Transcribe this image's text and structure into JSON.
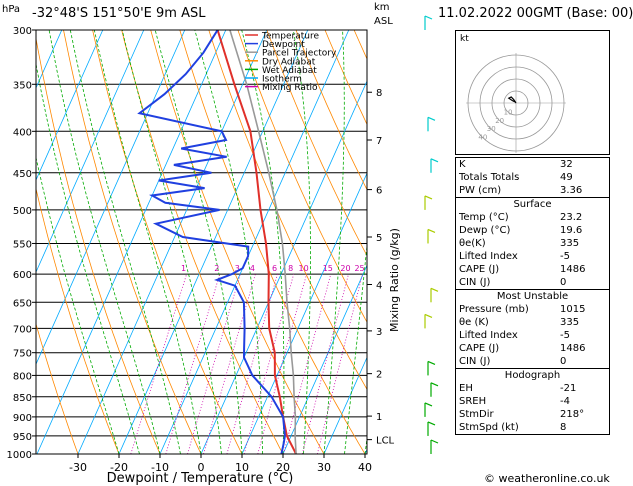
{
  "header": {
    "hpa_label": "hPa",
    "location": "-32°48'S 151°50'E 9m ASL",
    "km_label": "km",
    "asl_label": "ASL",
    "date": "11.02.2022 00GMT (Base: 00)"
  },
  "footer": {
    "credit": "© weatheronline.co.uk"
  },
  "chart_data": {
    "type": "line",
    "subtype": "skew-T log-P diagram",
    "xlabel": "Dewpoint / Temperature (°C)",
    "ylabel_right": "Mixing Ratio (g/kg)",
    "x_ticks": [
      -30,
      -20,
      -10,
      0,
      10,
      20,
      30,
      40
    ],
    "pressure_levels": [
      300,
      350,
      400,
      450,
      500,
      550,
      600,
      650,
      700,
      750,
      800,
      850,
      900,
      950,
      1000
    ],
    "altitude_km_ticks": [
      {
        "label": "8",
        "p": 358
      },
      {
        "label": "7",
        "p": 410
      },
      {
        "label": "6",
        "p": 472
      },
      {
        "label": "5",
        "p": 540
      },
      {
        "label": "4",
        "p": 618
      },
      {
        "label": "3",
        "p": 705
      },
      {
        "label": "2",
        "p": 796
      },
      {
        "label": "1",
        "p": 898
      },
      {
        "label": "LCL",
        "p": 960
      }
    ],
    "mixing_ratio_labels": [
      "1",
      "2",
      "3",
      "4",
      "6",
      "8",
      "10",
      "15",
      "20",
      "25"
    ],
    "mixing_ratio_values": [
      1,
      2,
      3,
      4,
      6,
      8,
      10,
      15,
      20,
      25
    ],
    "legend": [
      {
        "name": "Temperature",
        "color": "#e0302a"
      },
      {
        "name": "Dewpoint",
        "color": "#2040e0"
      },
      {
        "name": "Parcel Trajectory",
        "color": "#999999"
      },
      {
        "name": "Dry Adiabat",
        "color": "#ff8800"
      },
      {
        "name": "Wet Adiabat",
        "color": "#00aa00"
      },
      {
        "name": "Isotherm",
        "color": "#00aaff"
      },
      {
        "name": "Mixing Ratio",
        "color": "#cc00aa"
      }
    ],
    "series": [
      {
        "name": "Temperature",
        "color": "#e0302a",
        "points": [
          [
            1000,
            23.2
          ],
          [
            950,
            19
          ],
          [
            900,
            16
          ],
          [
            850,
            13
          ],
          [
            800,
            9.5
          ],
          [
            750,
            7
          ],
          [
            700,
            3
          ],
          [
            650,
            0
          ],
          [
            600,
            -3
          ],
          [
            550,
            -7
          ],
          [
            500,
            -12
          ],
          [
            450,
            -17
          ],
          [
            400,
            -23
          ],
          [
            350,
            -32
          ],
          [
            300,
            -42
          ]
        ]
      },
      {
        "name": "Dewpoint",
        "color": "#2040e0",
        "points": [
          [
            1000,
            19.6
          ],
          [
            970,
            19
          ],
          [
            950,
            18.5
          ],
          [
            900,
            16
          ],
          [
            850,
            11
          ],
          [
            800,
            4
          ],
          [
            760,
            0
          ],
          [
            740,
            -1
          ],
          [
            700,
            -3
          ],
          [
            650,
            -6
          ],
          [
            620,
            -10
          ],
          [
            610,
            -15
          ],
          [
            600,
            -12
          ],
          [
            590,
            -10
          ],
          [
            570,
            -10
          ],
          [
            555,
            -11
          ],
          [
            540,
            -28
          ],
          [
            520,
            -36
          ],
          [
            500,
            -22
          ],
          [
            490,
            -36
          ],
          [
            480,
            -40
          ],
          [
            470,
            -28
          ],
          [
            460,
            -40
          ],
          [
            450,
            -28
          ],
          [
            440,
            -38
          ],
          [
            430,
            -26
          ],
          [
            420,
            -38
          ],
          [
            410,
            -28
          ],
          [
            400,
            -30
          ],
          [
            380,
            -52
          ],
          [
            360,
            -48
          ],
          [
            340,
            -45
          ],
          [
            320,
            -43
          ],
          [
            300,
            -42
          ]
        ]
      },
      {
        "name": "Parcel Trajectory",
        "color": "#999999",
        "points": [
          [
            1000,
            23.2
          ],
          [
            950,
            21
          ],
          [
            900,
            19
          ],
          [
            850,
            16.5
          ],
          [
            800,
            14
          ],
          [
            750,
            11
          ],
          [
            700,
            8
          ],
          [
            650,
            4.5
          ],
          [
            600,
            1
          ],
          [
            550,
            -3
          ],
          [
            500,
            -8
          ],
          [
            450,
            -14
          ],
          [
            400,
            -21
          ],
          [
            350,
            -29
          ],
          [
            300,
            -39
          ]
        ]
      }
    ],
    "hodograph": {
      "label": "kt",
      "ring_labels": [
        "10",
        "20",
        "30",
        "40"
      ],
      "points_kt": [
        [
          0,
          0
        ],
        [
          -2,
          3
        ],
        [
          -4,
          5
        ],
        [
          -6,
          4
        ],
        [
          -3,
          2
        ],
        [
          -1,
          1
        ]
      ]
    },
    "wind_barb_colors": [
      "#00cccc",
      "#aacc00",
      "#00aa00"
    ]
  },
  "indices": {
    "top": [
      {
        "label": "K",
        "value": "32"
      },
      {
        "label": "Totals Totals",
        "value": "49"
      },
      {
        "label": "PW (cm)",
        "value": "3.36"
      }
    ],
    "surface": {
      "title": "Surface",
      "rows": [
        {
          "label": "Temp (°C)",
          "value": "23.2"
        },
        {
          "label": "Dewp (°C)",
          "value": "19.6"
        },
        {
          "label": "θe(K)",
          "value": "335"
        },
        {
          "label": "Lifted Index",
          "value": "-5"
        },
        {
          "label": "CAPE (J)",
          "value": "1486"
        },
        {
          "label": "CIN (J)",
          "value": "0"
        }
      ]
    },
    "most_unstable": {
      "title": "Most Unstable",
      "rows": [
        {
          "label": "Pressure (mb)",
          "value": "1015"
        },
        {
          "label": "θe (K)",
          "value": "335"
        },
        {
          "label": "Lifted Index",
          "value": "-5"
        },
        {
          "label": "CAPE (J)",
          "value": "1486"
        },
        {
          "label": "CIN (J)",
          "value": "0"
        }
      ]
    },
    "hodograph": {
      "title": "Hodograph",
      "rows": [
        {
          "label": "EH",
          "value": "-21"
        },
        {
          "label": "SREH",
          "value": "-4"
        },
        {
          "label": "StmDir",
          "value": "218°"
        },
        {
          "label": "StmSpd (kt)",
          "value": "8"
        }
      ]
    }
  }
}
